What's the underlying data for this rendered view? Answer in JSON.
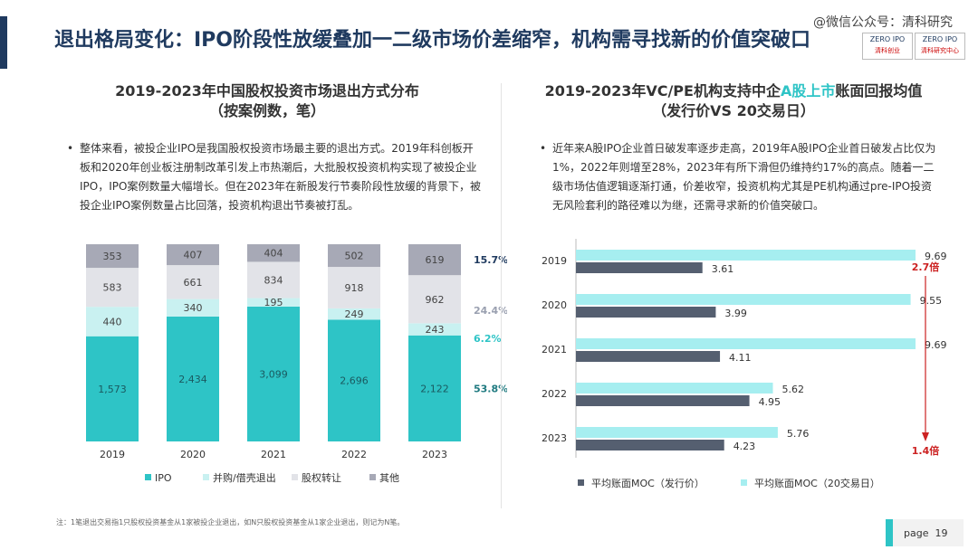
{
  "header": {
    "title": "退出格局变化：IPO阶段性放缓叠加一二级市场价差缩窄，机构需寻找新的价值突破口",
    "watermark": "@微信公众号：清科研究",
    "logo_left": [
      "ZERO IPO",
      "清科创业"
    ],
    "logo_right": [
      "ZERO IPO",
      "清科研究中心"
    ]
  },
  "left": {
    "title_line1": "2019-2023年中国股权投资市场退出方式分布",
    "title_line2": "（按案例数，笔）",
    "bullet": "整体来看，被投企业IPO是我国股权投资市场最主要的退出方式。2019年科创板开板和2020年创业板注册制改革引发上市热潮后，大批股权投资机构实现了被投企业IPO，IPO案例数量大幅增长。但在2023年在新股发行节奏阶段性放缓的背景下，被投企业IPO案例数量占比回落，投资机构退出节奏被打乱。"
  },
  "right": {
    "title_line1_a": "2019-2023年VC/PE机构支持中企",
    "title_line1_b": "A股上市",
    "title_line1_c": "账面回报均值",
    "title_line2": "（发行价VS 20交易日）",
    "bullet": "近年来A股IPO企业首日破发率逐步走高，2019年A股IPO企业首日破发占比仅为1%，2022年则增至28%，2023年有所下滑但仍维持约17%的高点。随着一二级市场估值逻辑逐渐打通，价差收窄，投资机构尤其是PE机构通过pre-IPO投资无风险套利的路径难以为继，还需寻求新的价值突破口。"
  },
  "chart_data": [
    {
      "type": "bar",
      "stacked": true,
      "categories": [
        "2019",
        "2020",
        "2021",
        "2022",
        "2023"
      ],
      "series": [
        {
          "name": "IPO",
          "values": [
            1573,
            2434,
            3099,
            2696,
            2122
          ],
          "labels": [
            "1,573",
            "2,434",
            "3,099",
            "2,696",
            "2,122"
          ],
          "color": "#2ec4c6"
        },
        {
          "name": "并购/借壳退出",
          "values": [
            440,
            340,
            195,
            249,
            243
          ],
          "labels": [
            "440",
            "340",
            "195",
            "249",
            "243"
          ],
          "color": "#c9f1f1"
        },
        {
          "name": "股权转让",
          "values": [
            583,
            661,
            834,
            918,
            962
          ],
          "labels": [
            "583",
            "661",
            "834",
            "918",
            "962"
          ],
          "color": "#e2e3e8"
        },
        {
          "name": "其他",
          "values": [
            353,
            407,
            404,
            502,
            619
          ],
          "labels": [
            "353",
            "407",
            "404",
            "502",
            "619"
          ],
          "color": "#a7a9b6"
        }
      ],
      "annotations": [
        {
          "text": "15.7%",
          "series": "其他",
          "color": "#1f3a5f"
        },
        {
          "text": "24.4%",
          "series": "股权转让",
          "color": "#9aa0b0"
        },
        {
          "text": "6.2%",
          "series": "并购/借壳退出",
          "color": "#2ec4c6"
        },
        {
          "text": "53.8%",
          "series": "IPO",
          "color": "#1f7a80"
        }
      ]
    },
    {
      "type": "bar",
      "orientation": "horizontal",
      "categories": [
        "2019",
        "2020",
        "2021",
        "2022",
        "2023"
      ],
      "series": [
        {
          "name": "平均账面MOC（20交易日）",
          "values": [
            9.69,
            9.55,
            9.69,
            5.62,
            5.76
          ],
          "labels": [
            "9.69",
            "9.55",
            "9.69",
            "5.62",
            "5.76"
          ],
          "color": "#a6eef0"
        },
        {
          "name": "平均账面MOC（发行价）",
          "values": [
            3.61,
            3.99,
            4.11,
            4.95,
            4.23
          ],
          "labels": [
            "3.61",
            "3.99",
            "4.11",
            "4.95",
            "4.23"
          ],
          "color": "#555f70"
        }
      ],
      "legend_order": [
        "平均账面MOC（发行价）",
        "平均账面MOC（20交易日）"
      ],
      "xlim": [
        0,
        10
      ],
      "annotations": [
        {
          "text": "2.7倍",
          "color": "#cc2222"
        },
        {
          "text": "1.4倍",
          "color": "#cc2222"
        }
      ]
    }
  ],
  "footer": {
    "footnote": "注：1笔退出交易指1只股权投资基金从1家被投企业退出，如N只股权投资基金从1家企业退出，则记为N笔。",
    "page_label": "page",
    "page_number": "19"
  },
  "colors": {
    "accent": "#2ec4c6",
    "navy": "#1f3a5f",
    "red": "#cc2222"
  }
}
